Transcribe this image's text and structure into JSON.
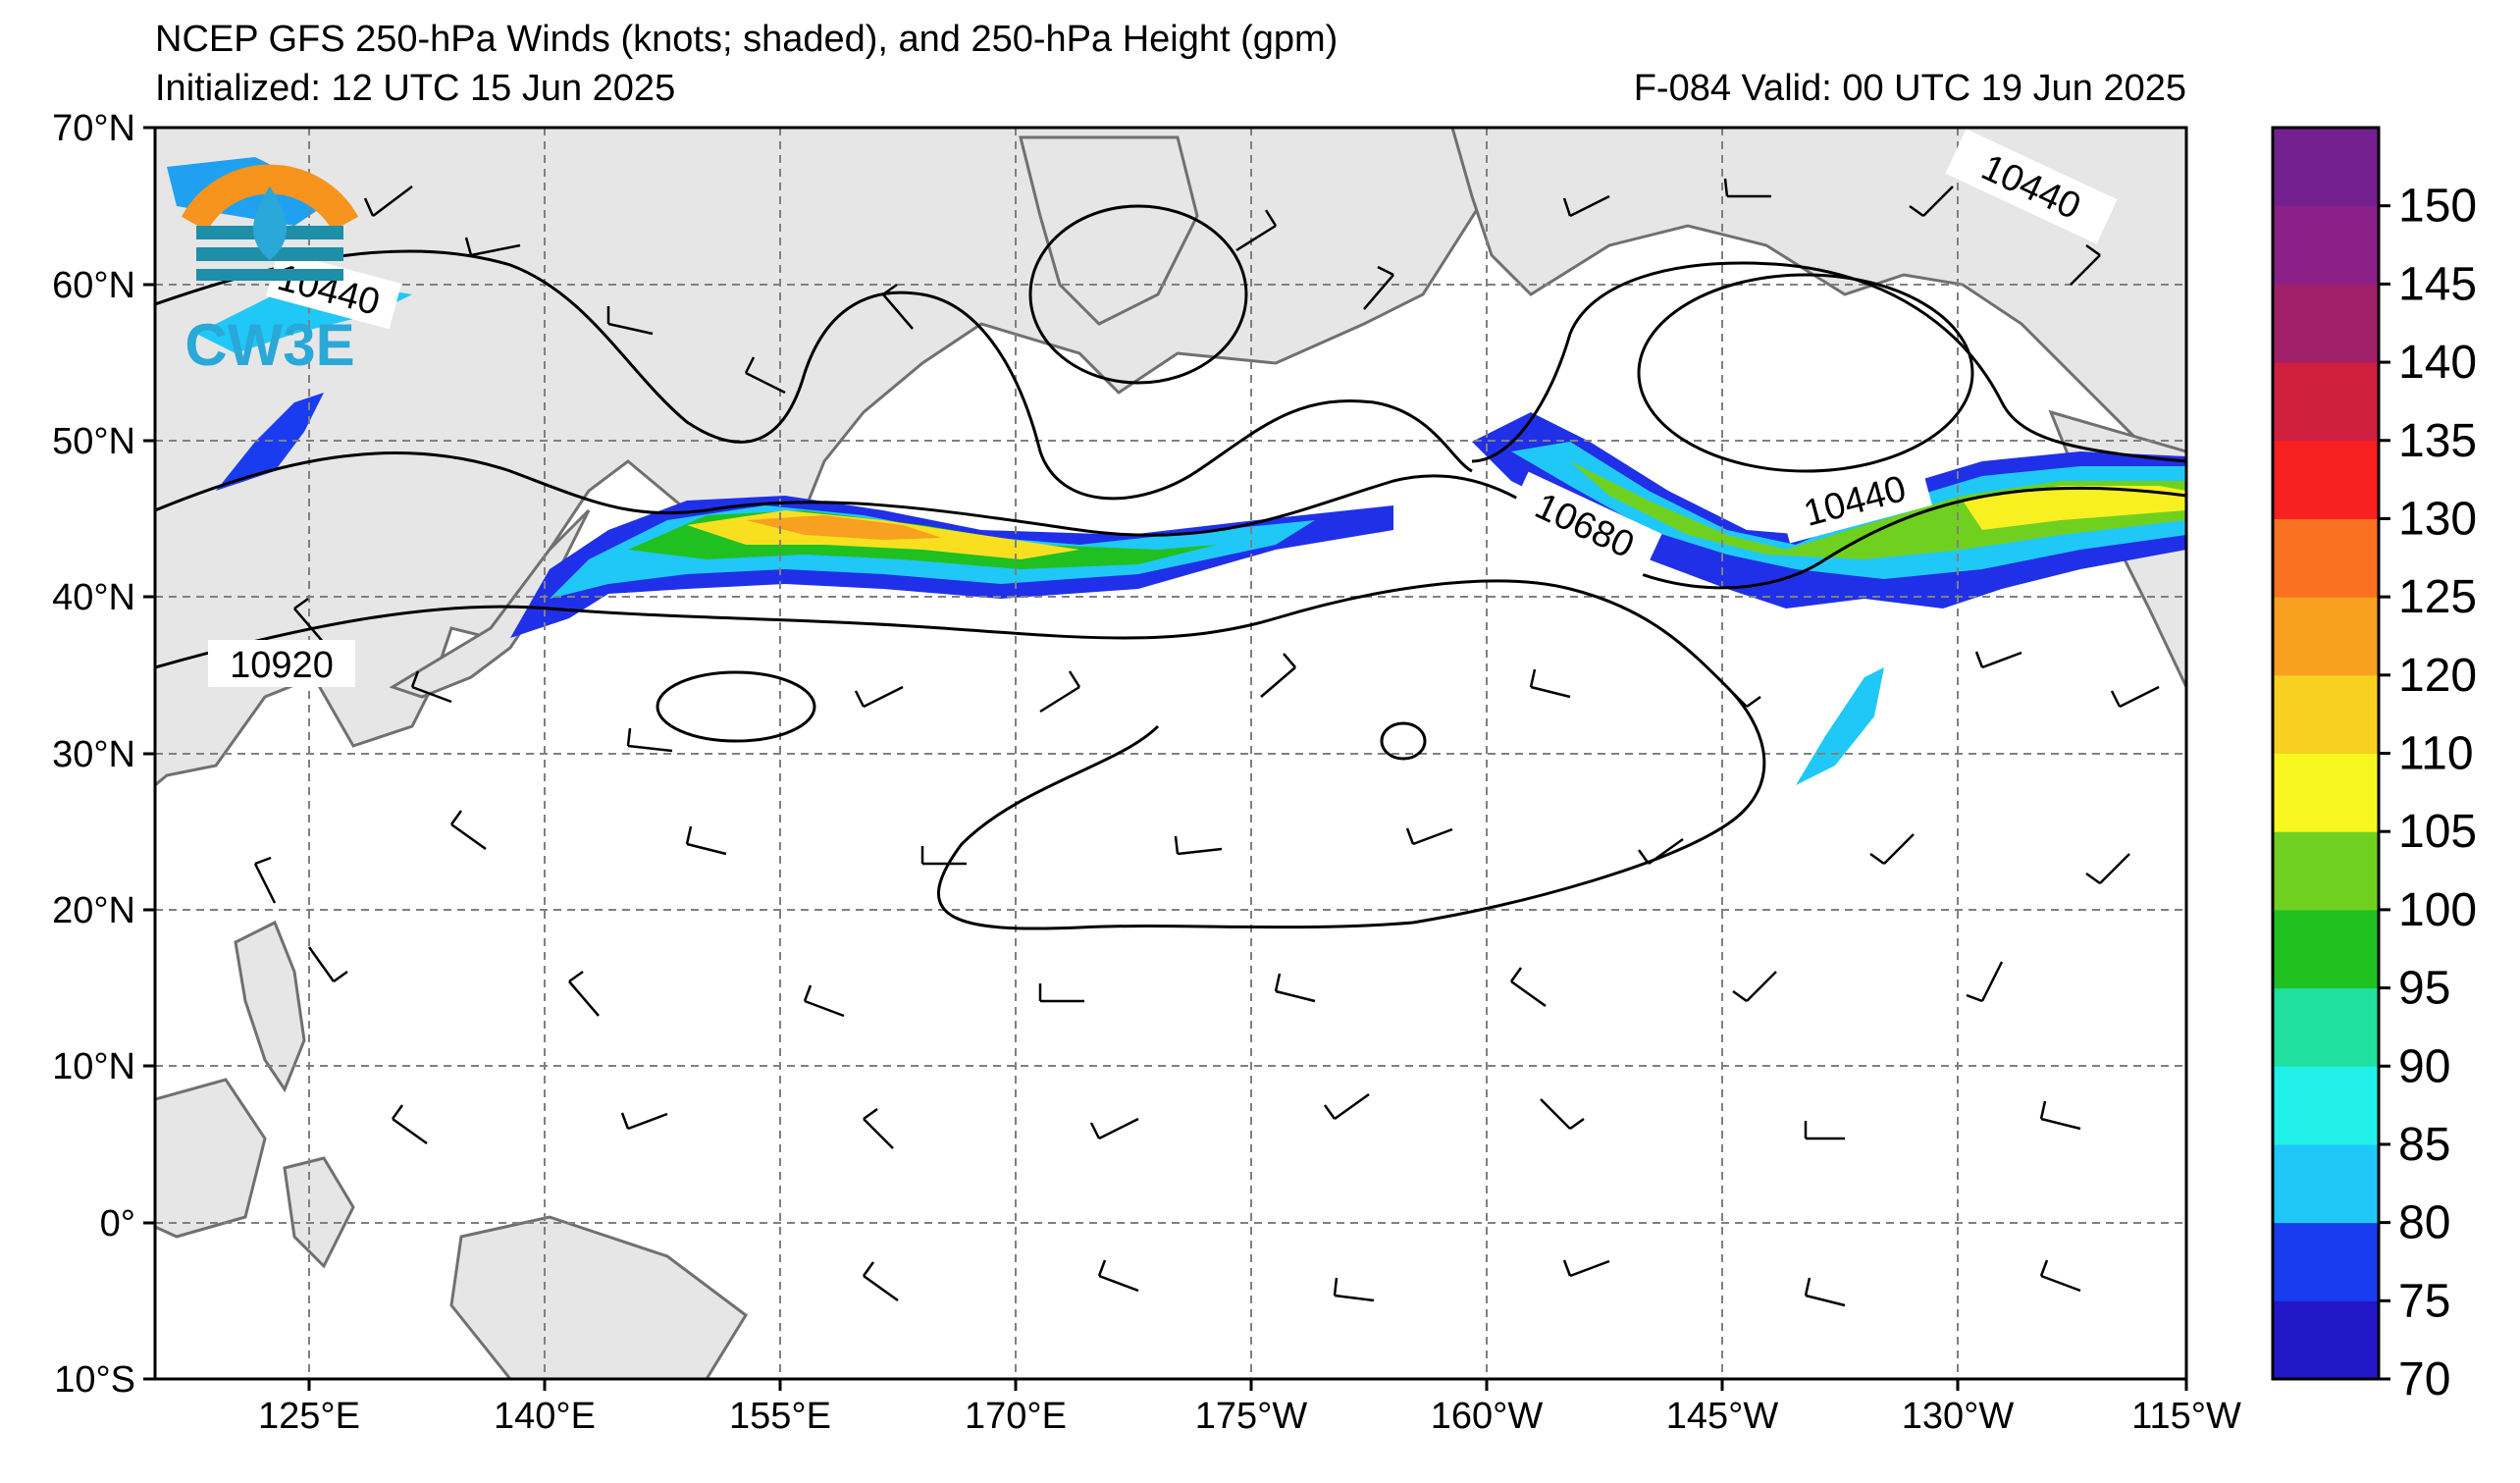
{
  "header": {
    "title": "NCEP GFS 250-hPa Winds (knots; shaded), and 250-hPa Height (gpm)",
    "initialized": "Initialized: 12 UTC 15 Jun 2025",
    "forecast_valid": "F-084  Valid: 00 UTC 19 Jun 2025"
  },
  "logo": {
    "text": "CW3E",
    "colors": {
      "orange": "#f7941d",
      "teal": "#1f8fa8",
      "blue": "#2aa8d8"
    }
  },
  "map": {
    "lat_labels": [
      "70°N",
      "60°N",
      "50°N",
      "40°N",
      "30°N",
      "20°N",
      "10°N",
      "0°",
      "10°S"
    ],
    "lon_labels": [
      "125°E",
      "140°E",
      "155°E",
      "170°E",
      "175°W",
      "160°W",
      "145°W",
      "130°W",
      "115°W"
    ],
    "contour_labels": [
      "10440",
      "10440",
      "10680",
      "10440",
      "10920"
    ],
    "land_color": "#e6e6e6",
    "coast_color": "#707070",
    "grid_color": "#808080"
  },
  "colorbar": {
    "ticks": [
      "150",
      "145",
      "140",
      "135",
      "130",
      "125",
      "120",
      "110",
      "105",
      "100",
      "95",
      "90",
      "85",
      "80",
      "75",
      "70"
    ],
    "colors": [
      "#2218c8",
      "#1a3cf0",
      "#20c8f8",
      "#20f0e8",
      "#20e0a0",
      "#20c020",
      "#70d020",
      "#f8f820",
      "#f8d020",
      "#f8a020",
      "#f87020",
      "#f82020",
      "#d02040",
      "#a0206a",
      "#8a2088",
      "#742090"
    ]
  }
}
